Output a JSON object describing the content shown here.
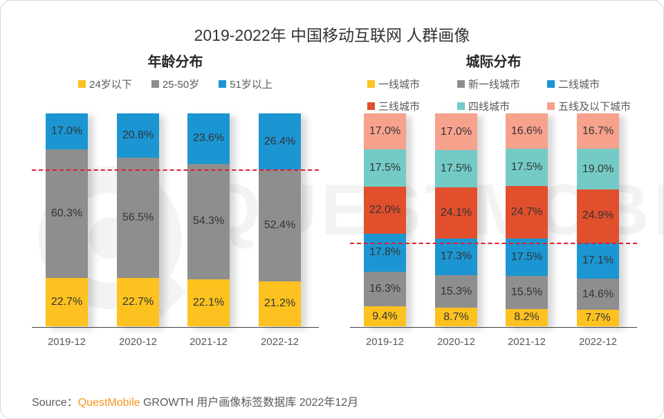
{
  "page": {
    "title": "2019-2022年 中国移动互联网 人群画像",
    "watermark": "QUESTMOBILE",
    "source": {
      "prefix": "Source：",
      "brand": "QuestMobile",
      "suffix": " GROWTH 用户画像标签数据库 2022年12月"
    }
  },
  "colors": {
    "reference_dash": "#e8192b",
    "brand_orange": "#f7941d",
    "axis": "#404040",
    "segment_label": "#333333",
    "muted_text": "#595959",
    "watermark": "#f3f3f3"
  },
  "chart_data": [
    {
      "id": "age",
      "type": "bar",
      "stacked": true,
      "title": "年龄分布",
      "categories": [
        "2019-12",
        "2020-12",
        "2021-12",
        "2022-12"
      ],
      "series": [
        {
          "name": "24岁以下",
          "color": "#fdc220",
          "values": [
            22.7,
            22.7,
            22.1,
            21.2
          ]
        },
        {
          "name": "25-50岁",
          "color": "#8e8e8e",
          "values": [
            60.3,
            56.5,
            54.3,
            52.4
          ]
        },
        {
          "name": "51岁以上",
          "color": "#1b96d3",
          "values": [
            17.0,
            20.8,
            23.6,
            26.4
          ]
        }
      ],
      "value_suffix": "%",
      "ylim": [
        0,
        100
      ],
      "legend_position": "top",
      "grid": false,
      "reference_line_pct_from_bottom": 73.6
    },
    {
      "id": "city",
      "type": "bar",
      "stacked": true,
      "title": "城际分布",
      "categories": [
        "2019-12",
        "2020-12",
        "2021-12",
        "2022-12"
      ],
      "series": [
        {
          "name": "一线城市",
          "color": "#fdc220",
          "values": [
            9.4,
            8.7,
            8.2,
            7.7
          ]
        },
        {
          "name": "新一线城市",
          "color": "#8e8e8e",
          "values": [
            16.3,
            15.3,
            15.5,
            14.6
          ]
        },
        {
          "name": "二线城市",
          "color": "#1b96d3",
          "values": [
            17.8,
            17.3,
            17.5,
            17.1
          ]
        },
        {
          "name": "三线城市",
          "color": "#e14f2d",
          "values": [
            22.0,
            24.1,
            24.7,
            24.9
          ]
        },
        {
          "name": "四线城市",
          "color": "#74cbc6",
          "values": [
            17.5,
            17.5,
            17.5,
            19.0
          ]
        },
        {
          "name": "五线及以下城市",
          "color": "#f7a28d",
          "values": [
            17.0,
            17.0,
            16.6,
            16.7
          ]
        }
      ],
      "value_suffix": "%",
      "ylim": [
        0,
        100
      ],
      "legend_position": "top",
      "grid": false,
      "reference_line_pct_from_bottom": 39.4
    }
  ]
}
